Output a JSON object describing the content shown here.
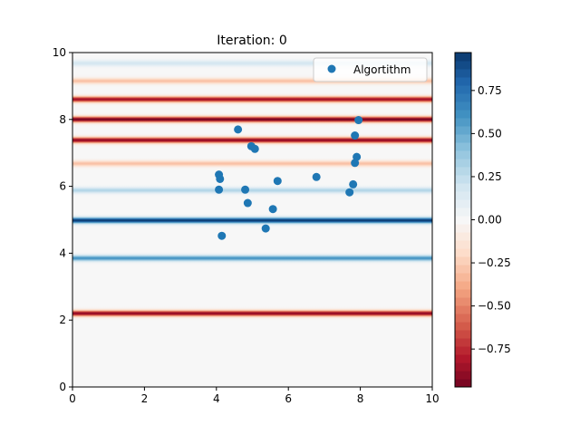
{
  "chart_data": {
    "type": "scatter",
    "title": "Iteration: 0",
    "xlabel": "",
    "ylabel": "",
    "xlim": [
      0,
      10
    ],
    "ylim": [
      0,
      10
    ],
    "x_ticks": [
      "0",
      "2",
      "4",
      "6",
      "8",
      "10"
    ],
    "y_ticks": [
      "0",
      "2",
      "4",
      "6",
      "8",
      "10"
    ],
    "grid": false,
    "legend": {
      "entries": [
        "Algortithm"
      ],
      "placement": "top-right"
    },
    "background": {
      "type": "heatmap",
      "colormap": "RdBu",
      "bands": [
        {
          "y": 2.2,
          "value": -0.9
        },
        {
          "y": 3.85,
          "value": 0.6
        },
        {
          "y": 4.98,
          "value": 0.97
        },
        {
          "y": 5.88,
          "value": 0.3
        },
        {
          "y": 6.68,
          "value": -0.3
        },
        {
          "y": 7.38,
          "value": -0.9
        },
        {
          "y": 8.0,
          "value": -0.97
        },
        {
          "y": 8.6,
          "value": -0.85
        },
        {
          "y": 9.15,
          "value": -0.3
        },
        {
          "y": 9.68,
          "value": 0.18
        }
      ]
    },
    "series": [
      {
        "name": "Algortithm",
        "color": "#1f77b4",
        "points": [
          [
            4.6,
            7.7
          ],
          [
            4.97,
            7.2
          ],
          [
            5.07,
            7.12
          ],
          [
            4.07,
            6.35
          ],
          [
            4.1,
            6.22
          ],
          [
            4.07,
            5.9
          ],
          [
            4.8,
            5.9
          ],
          [
            5.7,
            6.16
          ],
          [
            6.78,
            6.28
          ],
          [
            4.87,
            5.5
          ],
          [
            5.57,
            5.32
          ],
          [
            5.37,
            4.74
          ],
          [
            4.15,
            4.52
          ],
          [
            7.95,
            7.98
          ],
          [
            7.85,
            7.52
          ],
          [
            7.9,
            6.88
          ],
          [
            7.85,
            6.7
          ],
          [
            7.8,
            6.06
          ],
          [
            7.7,
            5.82
          ]
        ]
      }
    ],
    "colorbar": {
      "range": [
        -0.97,
        0.97
      ],
      "ticks": [
        "0.75",
        "0.50",
        "0.25",
        "0.00",
        "−0.25",
        "−0.50",
        "−0.75"
      ],
      "tick_values": [
        0.75,
        0.5,
        0.25,
        0.0,
        -0.25,
        -0.5,
        -0.75
      ],
      "levels": 41
    }
  }
}
